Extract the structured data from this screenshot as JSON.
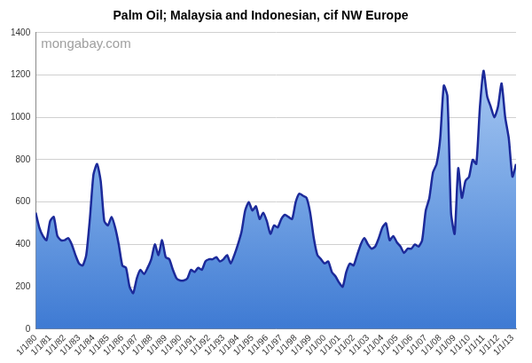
{
  "chart_data": {
    "type": "line",
    "title": "Palm Oil; Malaysia and Indonesian, cif NW Europe",
    "annotations": [
      "mongabay.com"
    ],
    "categories": [
      "1/1/80",
      null,
      null,
      null,
      "1/1/81",
      null,
      null,
      null,
      "1/1/82",
      null,
      null,
      null,
      "1/1/83",
      null,
      null,
      null,
      "1/1/84",
      null,
      null,
      null,
      "1/1/85",
      null,
      null,
      null,
      "1/1/86",
      null,
      null,
      null,
      "1/1/87",
      null,
      null,
      null,
      "1/1/88",
      null,
      null,
      null,
      "1/1/89",
      null,
      null,
      null,
      "1/1/90",
      null,
      null,
      null,
      "1/1/91",
      null,
      null,
      null,
      "1/1/92",
      null,
      null,
      null,
      "1/1/93",
      null,
      null,
      null,
      "1/1/94",
      null,
      null,
      null,
      "1/1/95",
      null,
      null,
      null,
      "1/1/96",
      null,
      null,
      null,
      "1/1/97",
      null,
      null,
      null,
      "1/1/98",
      null,
      null,
      null,
      "1/1/99",
      null,
      null,
      null,
      "1/1/00",
      null,
      null,
      null,
      "1/1/01",
      null,
      null,
      null,
      "1/1/02",
      null,
      null,
      null,
      "1/1/03",
      null,
      null,
      null,
      "1/1/04",
      null,
      null,
      null,
      "1/1/05",
      null,
      null,
      null,
      "1/1/06",
      null,
      null,
      null,
      "1/1/07",
      null,
      null,
      null,
      "1/1/08",
      null,
      null,
      null,
      "1/1/09",
      null,
      null,
      null,
      "1/1/10",
      null,
      null,
      null,
      "1/1/11",
      null,
      null,
      null,
      "1/1/12",
      null,
      null,
      null,
      "1/1/13",
      null
    ],
    "values": [
      550,
      480,
      440,
      420,
      510,
      530,
      440,
      420,
      420,
      430,
      400,
      350,
      310,
      300,
      350,
      520,
      730,
      780,
      700,
      510,
      490,
      530,
      480,
      400,
      300,
      290,
      200,
      170,
      240,
      280,
      260,
      290,
      330,
      400,
      350,
      420,
      340,
      330,
      280,
      240,
      230,
      230,
      240,
      280,
      270,
      290,
      280,
      320,
      330,
      330,
      340,
      320,
      330,
      350,
      310,
      350,
      400,
      460,
      560,
      600,
      560,
      580,
      520,
      550,
      510,
      450,
      490,
      480,
      520,
      540,
      530,
      520,
      600,
      640,
      630,
      620,
      550,
      430,
      350,
      330,
      310,
      320,
      270,
      250,
      220,
      200,
      270,
      310,
      300,
      350,
      400,
      430,
      400,
      380,
      390,
      430,
      480,
      500,
      420,
      440,
      410,
      390,
      360,
      380,
      380,
      400,
      390,
      420,
      560,
      620,
      740,
      780,
      900,
      1150,
      1100,
      550,
      450,
      760,
      620,
      700,
      720,
      800,
      780,
      1050,
      1220,
      1100,
      1050,
      1000,
      1050,
      1160,
      1000,
      900,
      720,
      780
    ],
    "color": "#1c2a9a",
    "ylim": [
      0,
      1400
    ],
    "yticks": [
      0,
      200,
      400,
      600,
      800,
      1000,
      1200,
      1400
    ],
    "grid": true
  }
}
